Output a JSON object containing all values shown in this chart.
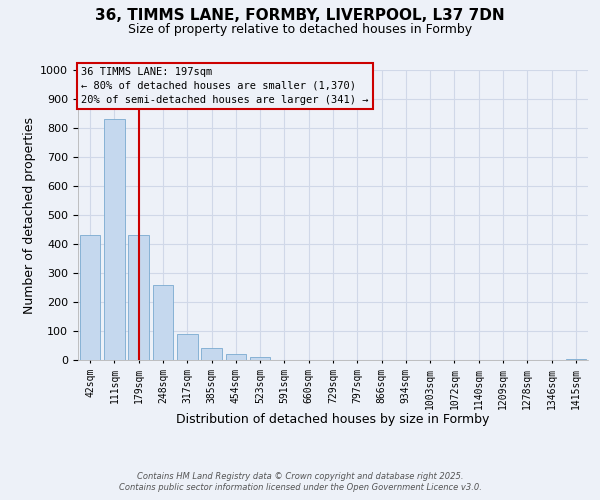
{
  "title_line1": "36, TIMMS LANE, FORMBY, LIVERPOOL, L37 7DN",
  "title_line2": "Size of property relative to detached houses in Formby",
  "xlabel": "Distribution of detached houses by size in Formby",
  "ylabel": "Number of detached properties",
  "categories": [
    "42sqm",
    "111sqm",
    "179sqm",
    "248sqm",
    "317sqm",
    "385sqm",
    "454sqm",
    "523sqm",
    "591sqm",
    "660sqm",
    "729sqm",
    "797sqm",
    "866sqm",
    "934sqm",
    "1003sqm",
    "1072sqm",
    "1140sqm",
    "1209sqm",
    "1278sqm",
    "1346sqm",
    "1415sqm"
  ],
  "values": [
    430,
    830,
    430,
    260,
    90,
    40,
    20,
    10,
    0,
    0,
    0,
    0,
    0,
    0,
    0,
    0,
    0,
    0,
    0,
    0,
    5
  ],
  "bar_color": "#c5d8ee",
  "bar_edge_color": "#7aaad0",
  "vline_x": 2,
  "vline_color": "#cc0000",
  "ylim_max": 1000,
  "yticks": [
    0,
    100,
    200,
    300,
    400,
    500,
    600,
    700,
    800,
    900,
    1000
  ],
  "annotation_line1": "36 TIMMS LANE: 197sqm",
  "annotation_line2": "← 80% of detached houses are smaller (1,370)",
  "annotation_line3": "20% of semi-detached houses are larger (341) →",
  "ann_box_color": "#cc0000",
  "bg_color": "#edf1f8",
  "grid_color": "#d0d8e8",
  "footer_line1": "Contains HM Land Registry data © Crown copyright and database right 2025.",
  "footer_line2": "Contains public sector information licensed under the Open Government Licence v3.0."
}
